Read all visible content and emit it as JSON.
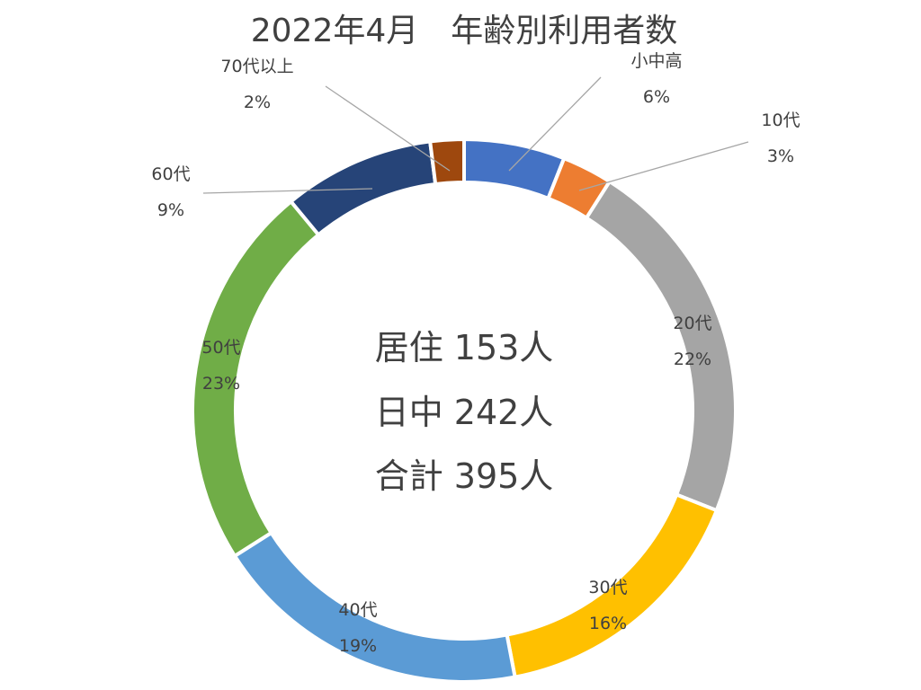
{
  "chart_data": {
    "type": "pie",
    "subtype": "doughnut",
    "title": "2022年4月　年齢別利用者数",
    "legend": "none",
    "categories": [
      "小中高",
      "10代",
      "20代",
      "30代",
      "40代",
      "50代",
      "60代",
      "70代以上"
    ],
    "values": [
      6,
      3,
      22,
      16,
      19,
      23,
      9,
      2
    ],
    "value_labels": [
      "6%",
      "3%",
      "22%",
      "16%",
      "19%",
      "23%",
      "9%",
      "2%"
    ],
    "colors": [
      "#4472C4",
      "#ED7D31",
      "#A5A5A5",
      "#FFC000",
      "#5B9BD5",
      "#70AD47",
      "#264478",
      "#9E480E"
    ],
    "center_text": [
      "居住 153人",
      "日中 242人",
      "合計 395人"
    ]
  }
}
